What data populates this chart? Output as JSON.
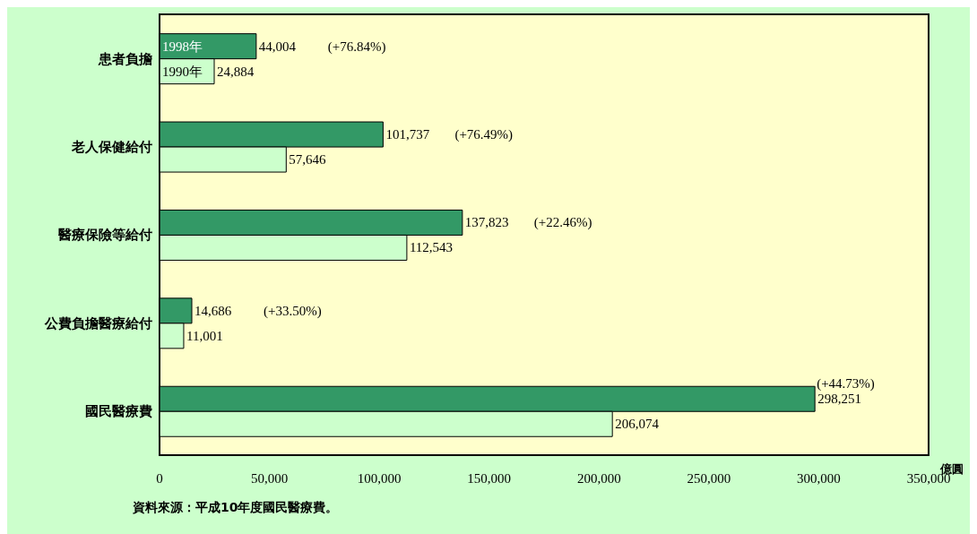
{
  "chart_data": {
    "type": "bar",
    "orientation": "horizontal",
    "categories": [
      "患者負擔",
      "老人保健給付",
      "醫療保險等給付",
      "公費負擔醫療給付",
      "國民醫療費"
    ],
    "series": [
      {
        "name": "1998年",
        "color": "#339966",
        "values": [
          44004,
          101737,
          137823,
          14686,
          298251
        ],
        "value_labels": [
          "44,004",
          "101,737",
          "137,823",
          "14,686",
          "298,251"
        ]
      },
      {
        "name": "1990年",
        "color": "#ccffcc",
        "values": [
          24884,
          57646,
          112543,
          11001,
          206074
        ],
        "value_labels": [
          "24,884",
          "57,646",
          "112,543",
          "11,001",
          "206,074"
        ]
      }
    ],
    "xlim": [
      0,
      350000
    ],
    "xticks": [
      0,
      {
        "value": 50000,
        "label": "50,000"
      },
      {
        "value": 100000,
        "label": "100,000"
      },
      {
        "value": 150000,
        "label": "150,000"
      },
      {
        "value": 200000,
        "label": "200,000"
      },
      {
        "value": 250000,
        "label": "250,000"
      },
      {
        "value": 300000,
        "label": "300,000"
      },
      {
        "value": 350000,
        "label": "350,000"
      }
    ],
    "xlabel": "億圓",
    "grid": false,
    "legend": false,
    "annotations": [
      "(+76.84%)",
      "(+76.49%)",
      "(+22.46%)",
      "(+33.50%)",
      "(+44.73%)",
      "資料來源：平成10年度國民醫療費。"
    ]
  }
}
